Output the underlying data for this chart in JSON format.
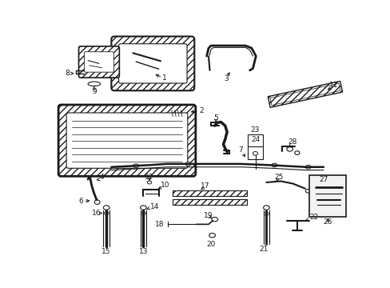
{
  "bg": "#ffffff",
  "lc": "#1a1a1a",
  "fig_w": 4.89,
  "fig_h": 3.6,
  "dpi": 100
}
